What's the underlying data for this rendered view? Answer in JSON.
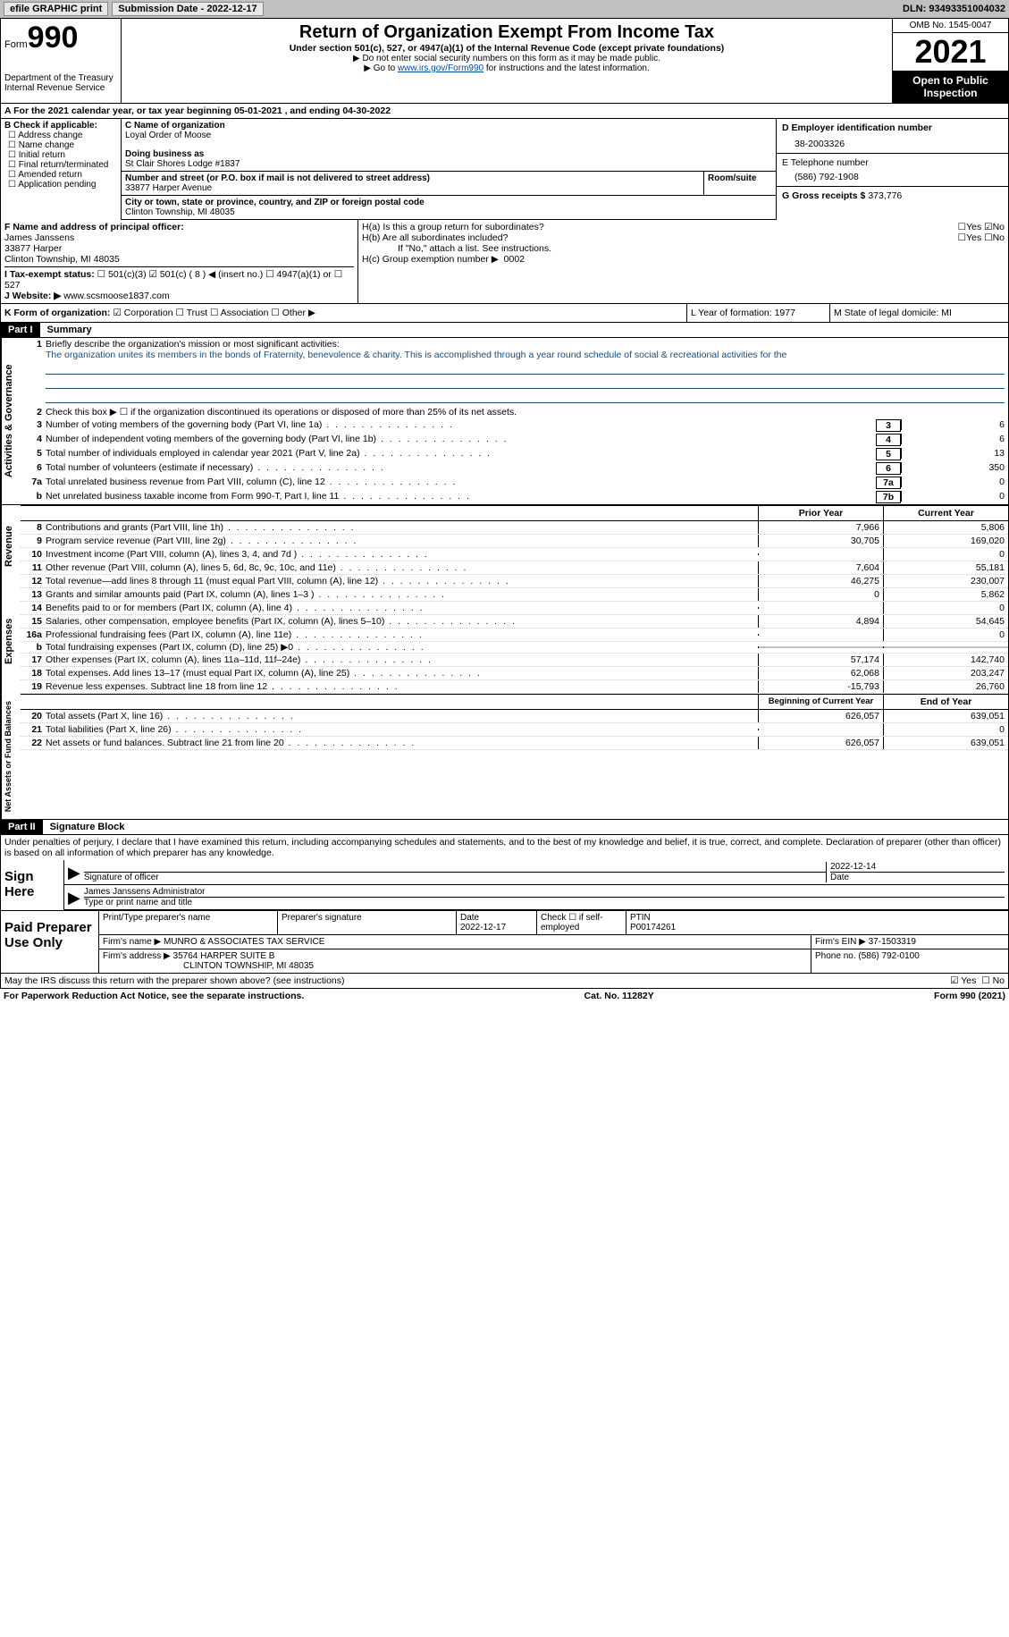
{
  "topbar": {
    "efile": "efile GRAPHIC print",
    "submission": "Submission Date - 2022-12-17",
    "dln": "DLN: 93493351004032"
  },
  "header": {
    "form_word": "Form",
    "form_num": "990",
    "dept": "Department of the Treasury Internal Revenue Service",
    "title": "Return of Organization Exempt From Income Tax",
    "sub": "Under section 501(c), 527, or 4947(a)(1) of the Internal Revenue Code (except private foundations)",
    "note1": "▶ Do not enter social security numbers on this form as it may be made public.",
    "note2_pre": "▶ Go to ",
    "note2_link": "www.irs.gov/Form990",
    "note2_post": " for instructions and the latest information.",
    "omb": "OMB No. 1545-0047",
    "year": "2021",
    "open": "Open to Public Inspection"
  },
  "row_a": "A For the 2021 calendar year, or tax year beginning 05-01-2021   , and ending 04-30-2022",
  "col_b": {
    "label": "B Check if applicable:",
    "opts": [
      "☐ Address change",
      "☐ Name change",
      "☐ Initial return",
      "☐ Final return/terminated",
      "☐ Amended return",
      "☐ Application pending"
    ]
  },
  "name_box": {
    "c_label": "C Name of organization",
    "org": "Loyal Order of Moose",
    "dba_label": "Doing business as",
    "dba": "St Clair Shores Lodge #1837",
    "street_label": "Number and street (or P.O. box if mail is not delivered to street address)",
    "street": "33877 Harper Avenue",
    "room_label": "Room/suite",
    "city_label": "City or town, state or province, country, and ZIP or foreign postal code",
    "city": "Clinton Township, MI  48035"
  },
  "col_d": {
    "ein_label": "D Employer identification number",
    "ein": "38-2003326",
    "tel_label": "E Telephone number",
    "tel": "(586) 792-1908",
    "gross_label": "G Gross receipts $",
    "gross": "373,776"
  },
  "f_box": {
    "label": "F Name and address of principal officer:",
    "name": "James Janssens",
    "addr1": "33877 Harper",
    "addr2": "Clinton Township, MI  48035"
  },
  "h_box": {
    "ha": "H(a)  Is this a group return for subordinates?",
    "hb": "H(b)  Are all subordinates included?",
    "hb_note": "If \"No,\" attach a list. See instructions.",
    "hc": "H(c)  Group exemption number ▶",
    "hc_val": "0002",
    "yes": "Yes",
    "no": "No"
  },
  "row_i": {
    "label": "I   Tax-exempt status:",
    "opts": "☐ 501(c)(3)   ☑ 501(c) ( 8 ) ◀ (insert no.)   ☐ 4947(a)(1) or   ☐ 527"
  },
  "row_j": {
    "label": "J   Website: ▶",
    "val": "www.scsmoose1837.com"
  },
  "row_k": {
    "label": "K Form of organization:",
    "opts": "☑ Corporation  ☐ Trust  ☐ Association  ☐ Other ▶",
    "l": "L Year of formation: 1977",
    "m": "M State of legal domicile: MI"
  },
  "part1": {
    "hdr": "Part I",
    "title": "Summary"
  },
  "mission": {
    "num": "1",
    "label": "Briefly describe the organization's mission or most significant activities:",
    "text": "The organization unites its members in the bonds of Fraternity, benevolence & charity. This is accomplished through a year round schedule of social & recreational activities for the"
  },
  "lines_ag": [
    {
      "n": "2",
      "t": "Check this box ▶ ☐ if the organization discontinued its operations or disposed of more than 25% of its net assets."
    },
    {
      "n": "3",
      "t": "Number of voting members of the governing body (Part VI, line 1a)",
      "box": "3",
      "v": "6"
    },
    {
      "n": "4",
      "t": "Number of independent voting members of the governing body (Part VI, line 1b)",
      "box": "4",
      "v": "6"
    },
    {
      "n": "5",
      "t": "Total number of individuals employed in calendar year 2021 (Part V, line 2a)",
      "box": "5",
      "v": "13"
    },
    {
      "n": "6",
      "t": "Total number of volunteers (estimate if necessary)",
      "box": "6",
      "v": "350"
    },
    {
      "n": "7a",
      "t": "Total unrelated business revenue from Part VIII, column (C), line 12",
      "box": "7a",
      "v": "0"
    },
    {
      "n": "b",
      "t": "Net unrelated business taxable income from Form 990-T, Part I, line 11",
      "box": "7b",
      "v": "0"
    }
  ],
  "two_col": {
    "h1": "Prior Year",
    "h2": "Current Year"
  },
  "revenue": [
    {
      "n": "8",
      "t": "Contributions and grants (Part VIII, line 1h)",
      "v1": "7,966",
      "v2": "5,806"
    },
    {
      "n": "9",
      "t": "Program service revenue (Part VIII, line 2g)",
      "v1": "30,705",
      "v2": "169,020"
    },
    {
      "n": "10",
      "t": "Investment income (Part VIII, column (A), lines 3, 4, and 7d )",
      "v1": "",
      "v2": "0"
    },
    {
      "n": "11",
      "t": "Other revenue (Part VIII, column (A), lines 5, 6d, 8c, 9c, 10c, and 11e)",
      "v1": "7,604",
      "v2": "55,181"
    },
    {
      "n": "12",
      "t": "Total revenue—add lines 8 through 11 (must equal Part VIII, column (A), line 12)",
      "v1": "46,275",
      "v2": "230,007"
    }
  ],
  "expenses": [
    {
      "n": "13",
      "t": "Grants and similar amounts paid (Part IX, column (A), lines 1–3 )",
      "v1": "0",
      "v2": "5,862"
    },
    {
      "n": "14",
      "t": "Benefits paid to or for members (Part IX, column (A), line 4)",
      "v1": "",
      "v2": "0"
    },
    {
      "n": "15",
      "t": "Salaries, other compensation, employee benefits (Part IX, column (A), lines 5–10)",
      "v1": "4,894",
      "v2": "54,645"
    },
    {
      "n": "16a",
      "t": "Professional fundraising fees (Part IX, column (A), line 11e)",
      "v1": "",
      "v2": "0"
    },
    {
      "n": "b",
      "t": "Total fundraising expenses (Part IX, column (D), line 25) ▶0",
      "v1": "grey",
      "v2": "grey"
    },
    {
      "n": "17",
      "t": "Other expenses (Part IX, column (A), lines 11a–11d, 11f–24e)",
      "v1": "57,174",
      "v2": "142,740"
    },
    {
      "n": "18",
      "t": "Total expenses. Add lines 13–17 (must equal Part IX, column (A), line 25)",
      "v1": "62,068",
      "v2": "203,247"
    },
    {
      "n": "19",
      "t": "Revenue less expenses. Subtract line 18 from line 12",
      "v1": "-15,793",
      "v2": "26,760"
    }
  ],
  "net_hdr": {
    "h1": "Beginning of Current Year",
    "h2": "End of Year"
  },
  "netassets": [
    {
      "n": "20",
      "t": "Total assets (Part X, line 16)",
      "v1": "626,057",
      "v2": "639,051"
    },
    {
      "n": "21",
      "t": "Total liabilities (Part X, line 26)",
      "v1": "",
      "v2": "0"
    },
    {
      "n": "22",
      "t": "Net assets or fund balances. Subtract line 21 from line 20",
      "v1": "626,057",
      "v2": "639,051"
    }
  ],
  "side": {
    "ag": "Activities & Governance",
    "rev": "Revenue",
    "exp": "Expenses",
    "net": "Net Assets or Fund Balances"
  },
  "part2": {
    "hdr": "Part II",
    "title": "Signature Block"
  },
  "sig": {
    "decl": "Under penalties of perjury, I declare that I have examined this return, including accompanying schedules and statements, and to the best of my knowledge and belief, it is true, correct, and complete. Declaration of preparer (other than officer) is based on all information of which preparer has any knowledge.",
    "sign_here": "Sign Here",
    "sig_label": "Signature of officer",
    "date_label": "Date",
    "date": "2022-12-14",
    "name": "James Janssens  Administrator",
    "name_label": "Type or print name and title"
  },
  "prep": {
    "label": "Paid Preparer Use Only",
    "h_name": "Print/Type preparer's name",
    "h_sig": "Preparer's signature",
    "h_date": "Date",
    "date": "2022-12-17",
    "h_check": "Check ☐ if self-employed",
    "h_ptin": "PTIN",
    "ptin": "P00174261",
    "firm_label": "Firm's name    ▶",
    "firm": "MUNRO & ASSOCIATES TAX SERVICE",
    "ein_label": "Firm's EIN ▶",
    "ein": "37-1503319",
    "addr_label": "Firm's address ▶",
    "addr1": "35764 HARPER SUITE B",
    "addr2": "CLINTON TOWNSHIP, MI  48035",
    "phone_label": "Phone no.",
    "phone": "(586) 792-0100"
  },
  "footer": {
    "discuss": "May the IRS discuss this return with the preparer shown above? (see instructions)",
    "yes": "☑ Yes",
    "no": "☐ No",
    "pra": "For Paperwork Reduction Act Notice, see the separate instructions.",
    "cat": "Cat. No. 11282Y",
    "form": "Form 990 (2021)"
  }
}
